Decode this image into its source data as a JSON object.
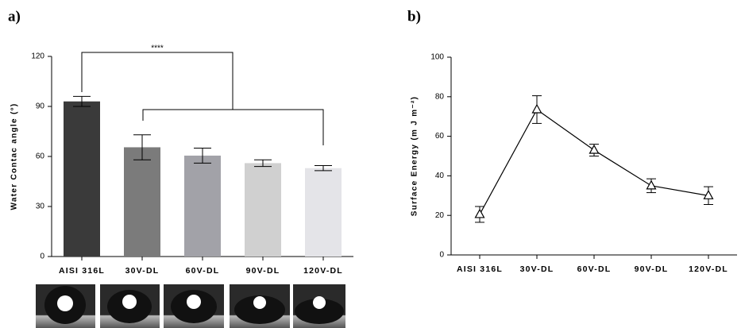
{
  "chart_data": [
    {
      "type": "bar",
      "panel_label": "a)",
      "ylabel": "Water Contac angle (°)",
      "categories": [
        "AISI 316L",
        "30V-DL",
        "60V-DL",
        "90V-DL",
        "120V-DL"
      ],
      "values": [
        93,
        65.5,
        60.5,
        56,
        53
      ],
      "errors": [
        3,
        7.5,
        4.5,
        2,
        1.5
      ],
      "colors": [
        "#3a3a3a",
        "#7b7b7b",
        "#a2a2a8",
        "#d0d0d0",
        "#e4e4e8"
      ],
      "ylim": [
        0,
        120
      ],
      "yticks": [
        0,
        30,
        60,
        90,
        120
      ],
      "annotation": "****"
    },
    {
      "type": "line",
      "panel_label": "b)",
      "ylabel": "Surface Energy (m J m⁻²)",
      "categories": [
        "AISI 316L",
        "30V-DL",
        "60V-DL",
        "90V-DL",
        "120V-DL"
      ],
      "values": [
        20.5,
        73.5,
        53,
        35,
        30
      ],
      "errors": [
        4,
        7,
        3,
        3.5,
        4.5
      ],
      "color": "#000000",
      "marker": "triangle",
      "ylim": [
        0,
        100
      ],
      "yticks": [
        0,
        20,
        40,
        60,
        80,
        100
      ]
    }
  ]
}
